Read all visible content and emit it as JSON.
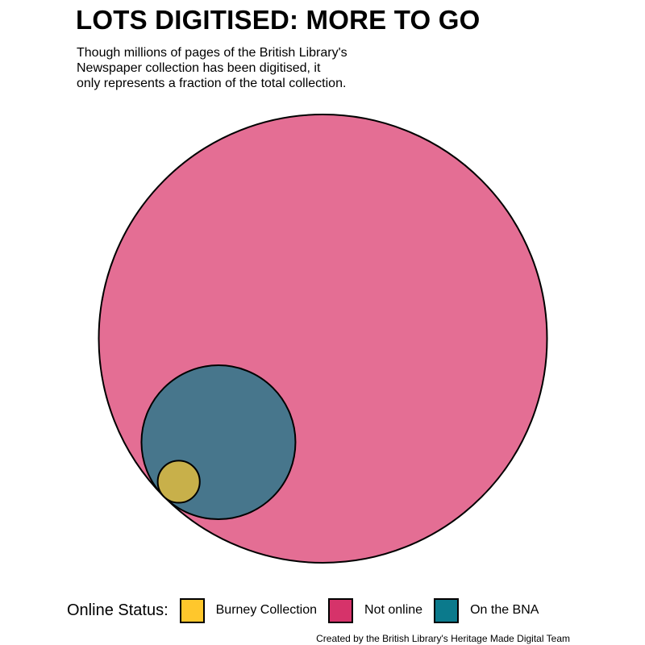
{
  "chart_data": {
    "type": "packed-circles",
    "title": "LOTS DIGITISED: MORE TO GO",
    "subtitle_lines": [
      "Though millions of pages of the British Library's",
      "Newspaper collection has been digitised, it",
      "only represents a fraction of the total collection."
    ],
    "circles": [
      {
        "name": "Not online",
        "relative_size": 1.0,
        "color": "#E46E94"
      },
      {
        "name": "On the BNA",
        "relative_size": 0.118,
        "color": "#47768C"
      },
      {
        "name": "Burney Collection",
        "relative_size": 0.0088,
        "color": "#C8B04A"
      }
    ],
    "legend": {
      "title": "Online Status:",
      "items": [
        {
          "label": "Burney Collection",
          "color": "#FFC72C"
        },
        {
          "label": "Not online",
          "color": "#D6336A"
        },
        {
          "label": "On the BNA",
          "color": "#0B7A8C"
        }
      ]
    },
    "caption": "Created by the British Library's Heritage Made Digital Team"
  }
}
